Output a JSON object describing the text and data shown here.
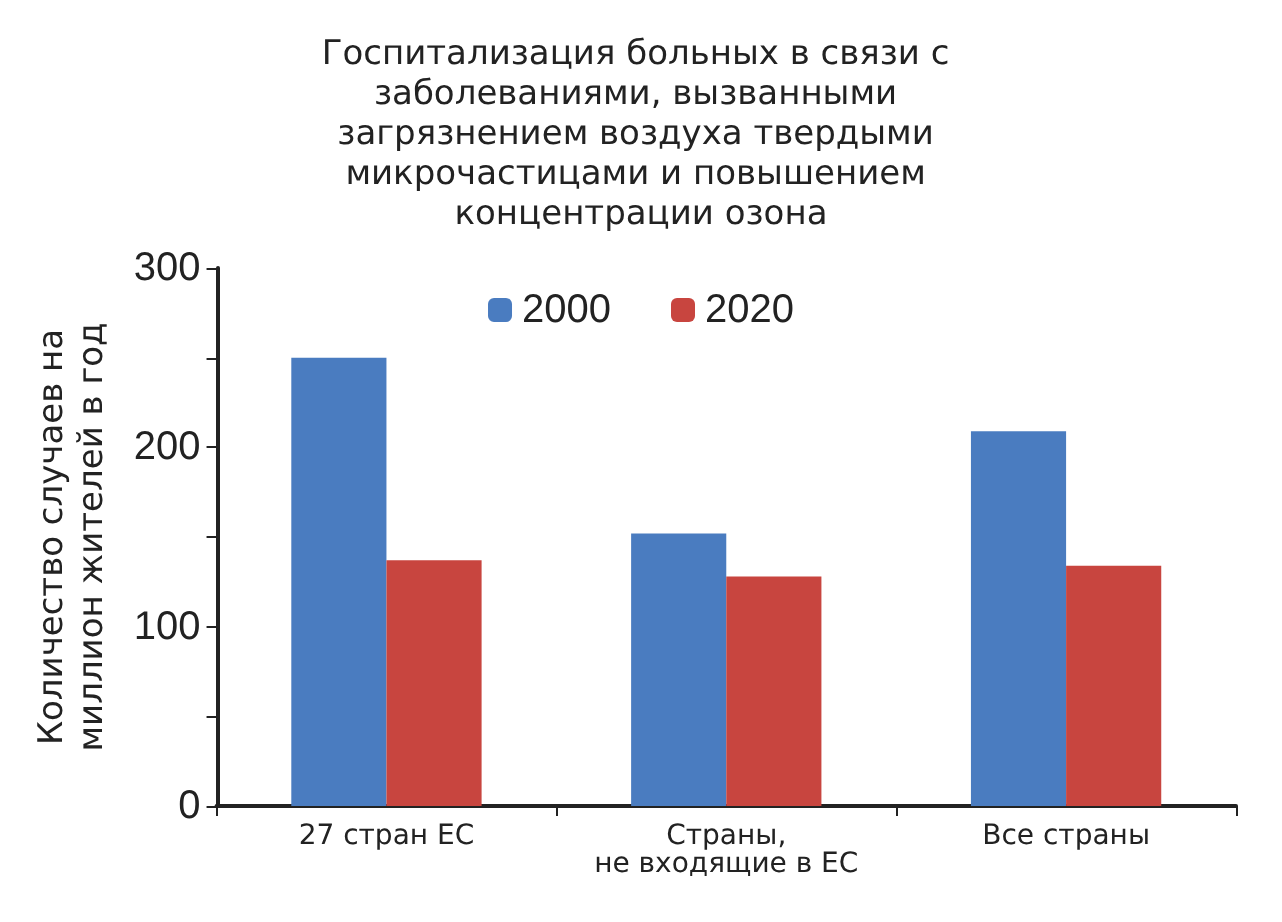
{
  "chart_data": {
    "type": "bar",
    "title": "Госпитализация больных в связи с заболеваниями, вызванными загрязнением воздуха твердыми микрочастицами и повышением концентрации озона",
    "ylabel": "Количество случаев на миллион жителей в год",
    "categories": [
      "27 стран ЕС",
      "Страны, не входящие в ЕС",
      "Все страны"
    ],
    "series": [
      {
        "name": "2000",
        "color": "#4a7cc0",
        "values": [
          250,
          152,
          209
        ]
      },
      {
        "name": "2020",
        "color": "#c8453f",
        "values": [
          137,
          128,
          134
        ]
      }
    ],
    "ylim": [
      0,
      300
    ],
    "yticks": [
      0,
      {
        "value": 50,
        "label": null
      },
      100,
      {
        "value": 150,
        "label": null
      },
      200,
      {
        "value": 250,
        "label": null
      },
      300
    ],
    "grid": false,
    "legend": "top"
  }
}
